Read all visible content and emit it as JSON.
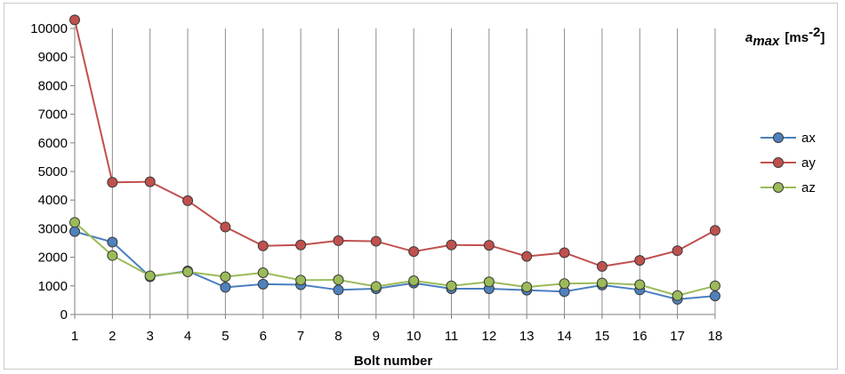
{
  "chart_data": {
    "type": "line",
    "xlabel": "Bolt number",
    "ylabel": {
      "symbol": "a",
      "subscript": "max",
      "unit": "[ms",
      "unit_exp": "-2",
      "unit_close": "]"
    },
    "categories": [
      "1",
      "2",
      "3",
      "4",
      "5",
      "6",
      "7",
      "8",
      "9",
      "10",
      "11",
      "12",
      "13",
      "14",
      "15",
      "16",
      "17",
      "18"
    ],
    "ylim": [
      0,
      10000
    ],
    "yticks": [
      "0",
      "1000",
      "2000",
      "3000",
      "4000",
      "5000",
      "6000",
      "7000",
      "8000",
      "9000",
      "10000"
    ],
    "grid": "vertical",
    "legend_position": "right",
    "series": [
      {
        "name": "ax",
        "color": "#4a7fc0",
        "marker": "#4f81bd",
        "values": [
          2900,
          2530,
          1320,
          1520,
          950,
          1060,
          1040,
          860,
          900,
          1100,
          900,
          900,
          850,
          800,
          1030,
          860,
          530,
          650
        ]
      },
      {
        "name": "ay",
        "color": "#c0504d",
        "marker": "#c0504d",
        "values": [
          10300,
          4620,
          4640,
          3980,
          3060,
          2400,
          2430,
          2580,
          2560,
          2200,
          2430,
          2420,
          2030,
          2160,
          1680,
          1890,
          2230,
          2940
        ]
      },
      {
        "name": "az",
        "color": "#9bbb59",
        "marker": "#9bbb59",
        "values": [
          3220,
          2060,
          1350,
          1490,
          1320,
          1460,
          1200,
          1210,
          980,
          1180,
          1000,
          1140,
          960,
          1080,
          1100,
          1040,
          660,
          1000
        ]
      }
    ]
  }
}
